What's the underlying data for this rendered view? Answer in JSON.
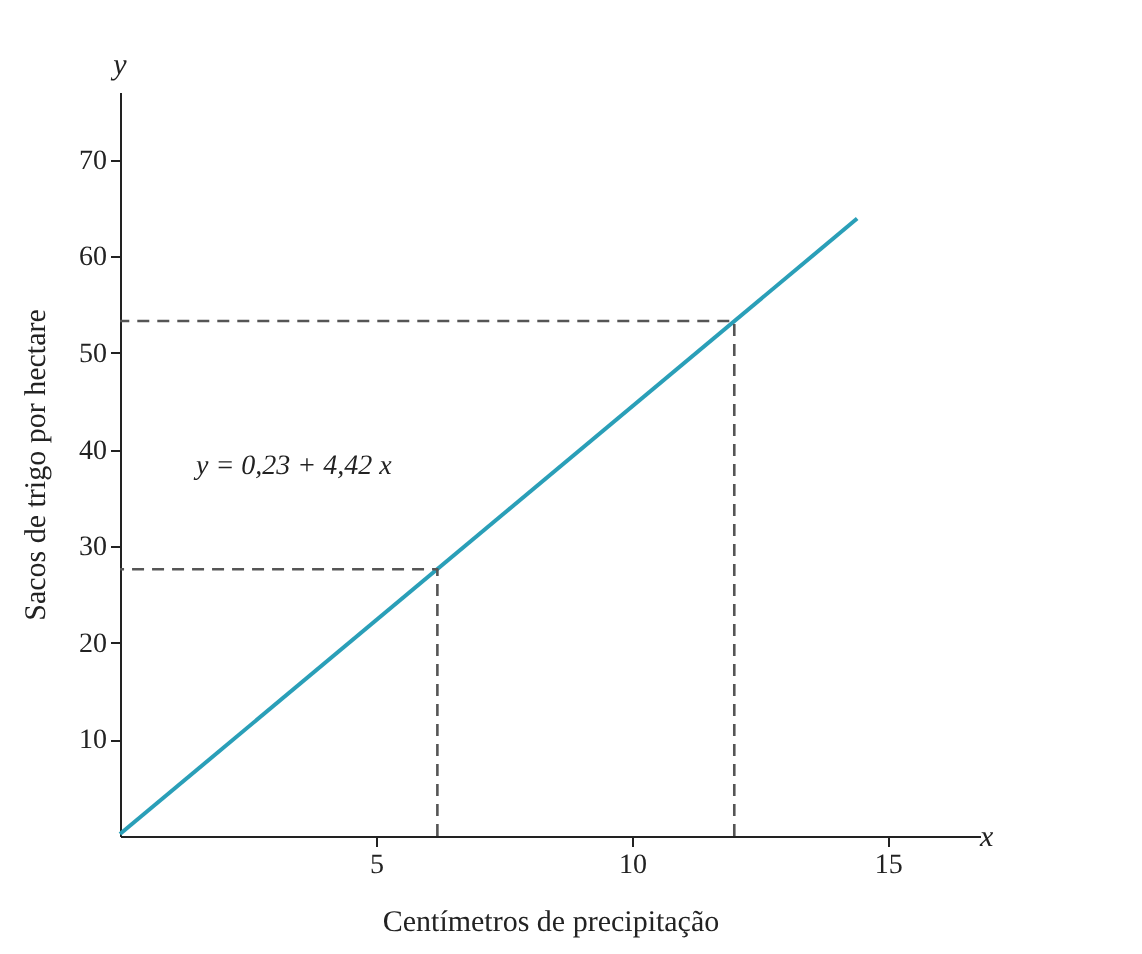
{
  "chart_data": {
    "type": "line",
    "xlabel": "Centímetros de precipitação",
    "ylabel": "Sacos de trigo por hectare",
    "xlim": [
      0,
      16.8
    ],
    "xticks": [
      5,
      10,
      15
    ],
    "ylim": [
      0,
      77
    ],
    "yticks": [
      10,
      20,
      30,
      40,
      50,
      60,
      70
    ],
    "grid": false,
    "marker": "none",
    "series": [
      {
        "color": "#2a9fb8",
        "x": [
          0,
          14.4
        ],
        "values": [
          0.2,
          63.9
        ],
        "line_style": "solid"
      },
      {
        "color": "#555555",
        "x": [
          6.2,
          6.2,
          0
        ],
        "values": [
          0,
          27.6,
          27.6
        ],
        "line_style": "dashed"
      },
      {
        "color": "#555555",
        "x": [
          12,
          12,
          0
        ],
        "values": [
          0,
          53.3,
          53.3
        ],
        "line_style": "dashed"
      }
    ],
    "annotations": [
      "y = 0,23 + 4,42 x",
      "y",
      "x"
    ]
  }
}
